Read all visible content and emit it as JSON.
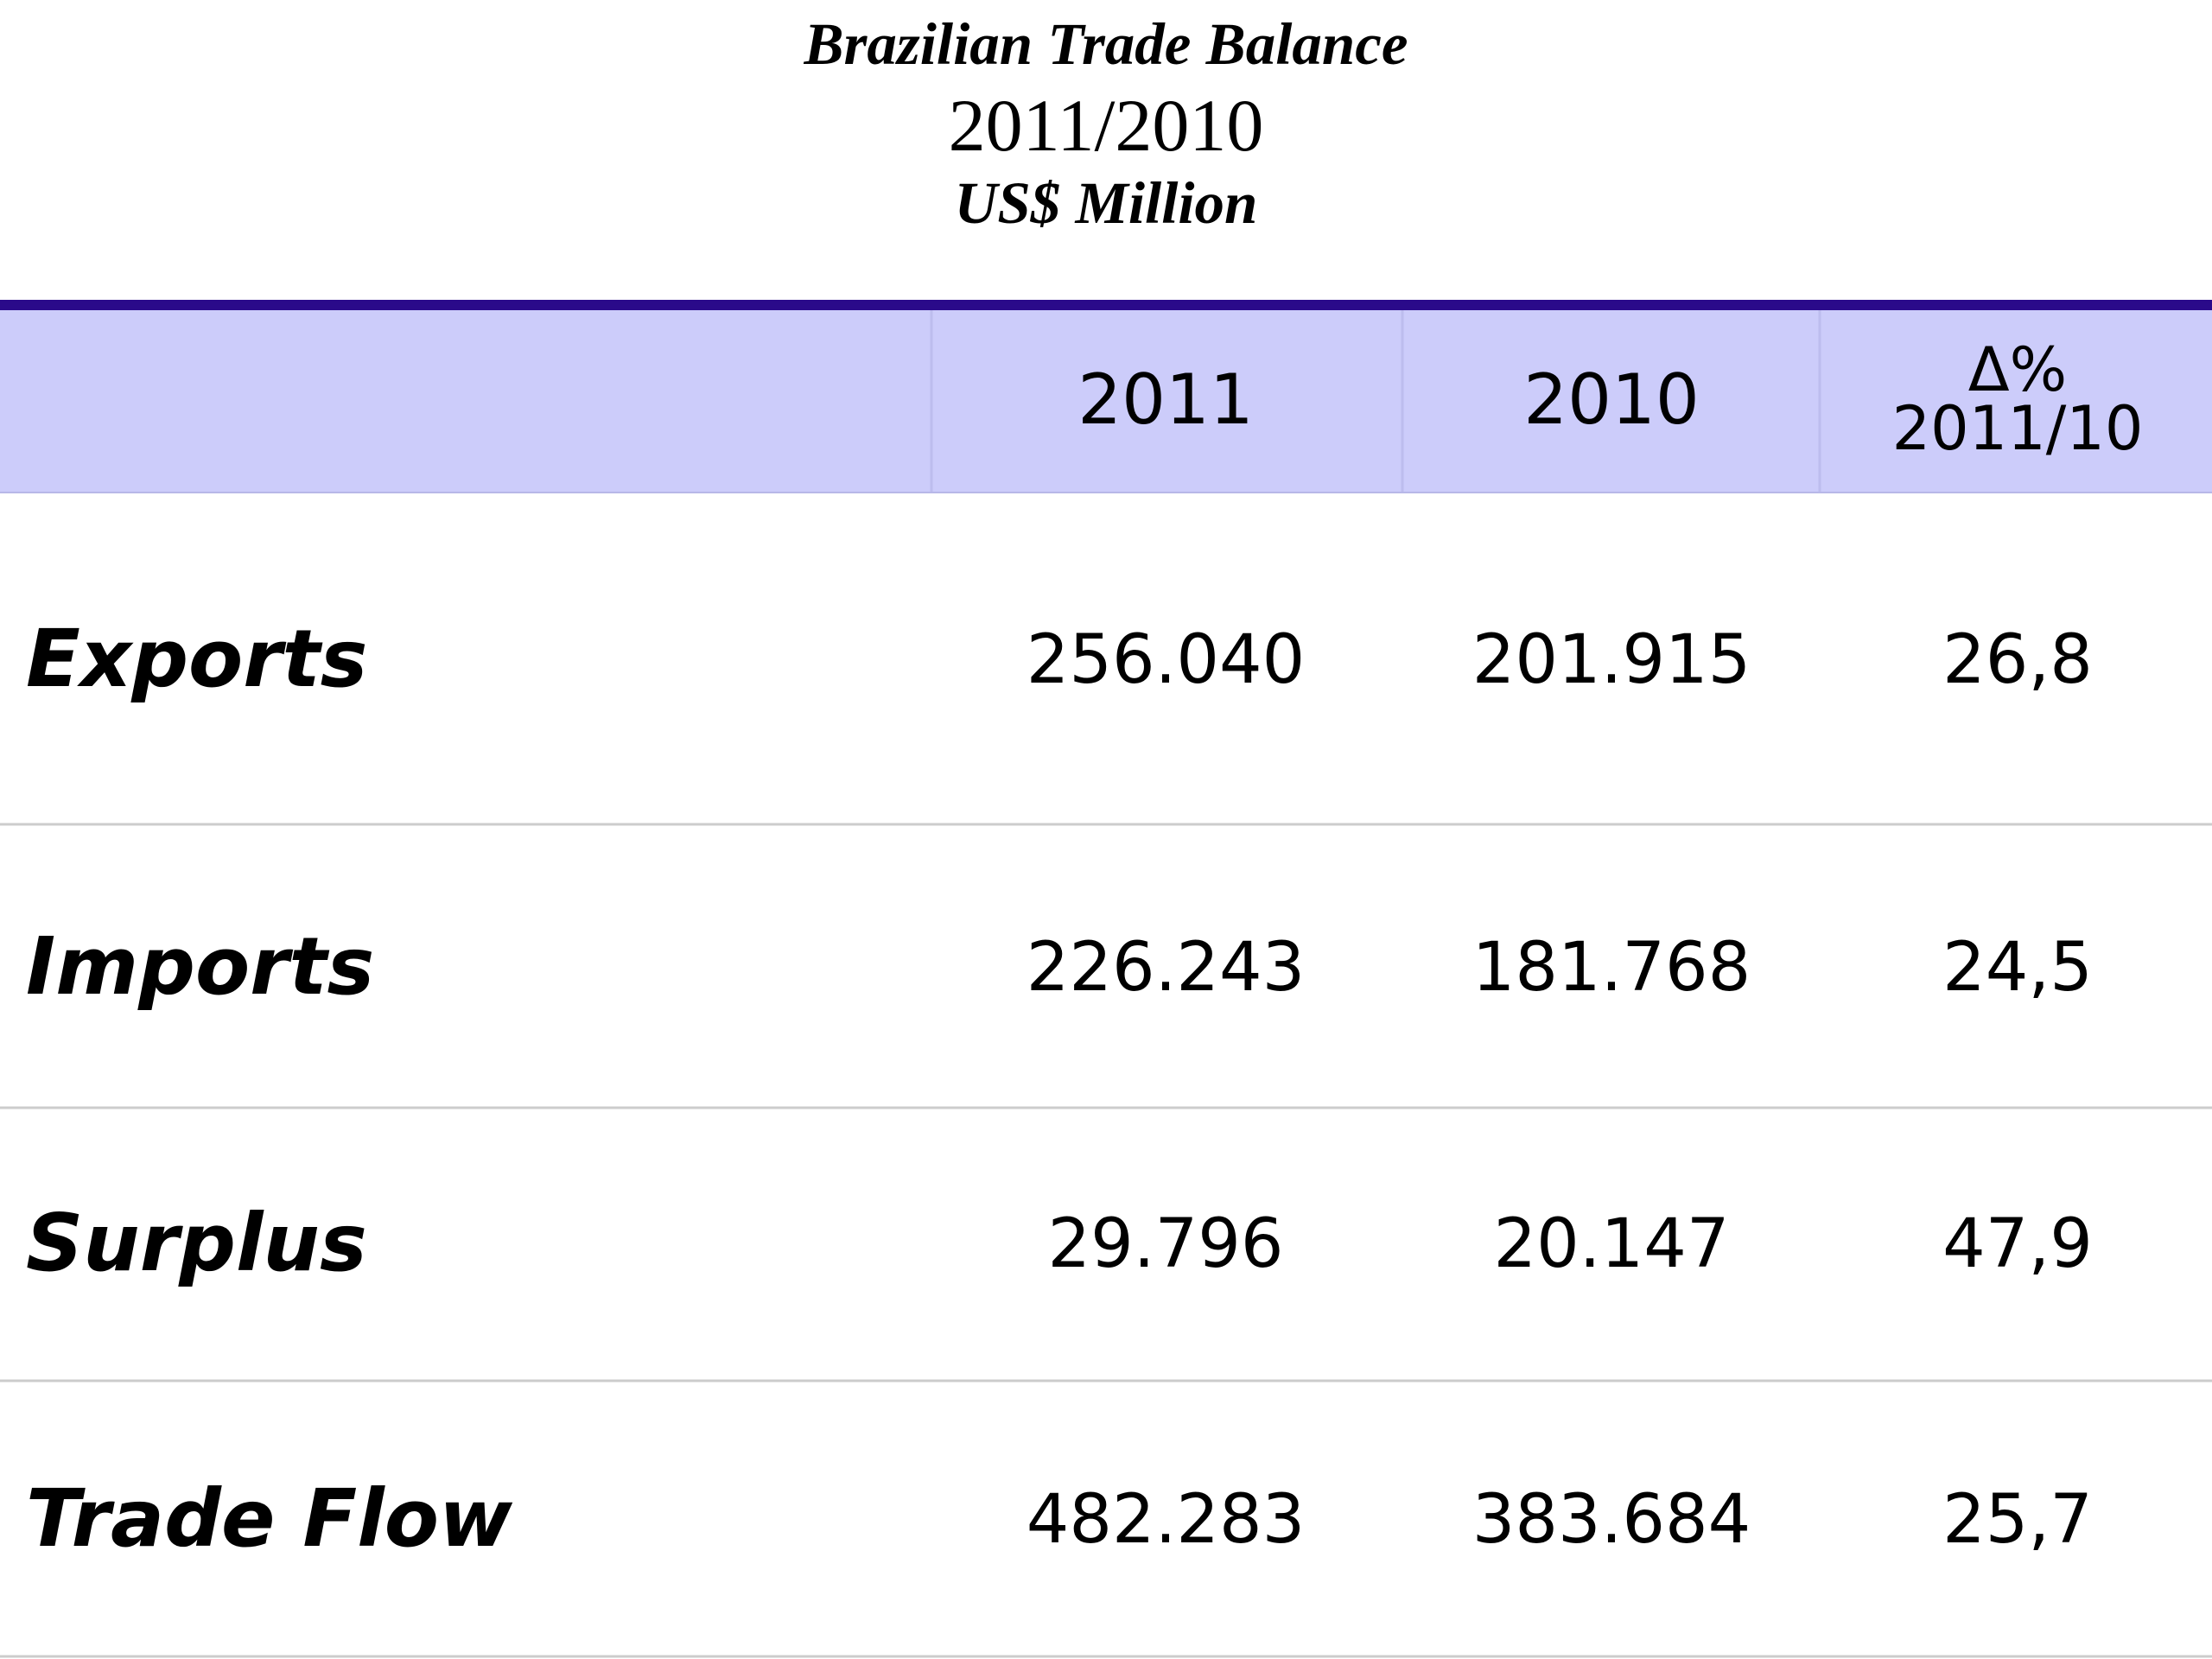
{
  "title": "Brazilian Trade Balance",
  "subtitle": "2011/2010",
  "units": "US$ Million",
  "colors": {
    "header_fill": "#ccccfa",
    "header_rule": "#2a0a8a",
    "row_divider": "#cccccc"
  },
  "chart_data": {
    "type": "table",
    "title": "Brazilian Trade Balance",
    "subtitle": "2011/2010",
    "units": "US$ Million",
    "columns": [
      "",
      "2011",
      "2010",
      "Δ%|2011/10"
    ],
    "column_header_lines": [
      [],
      [
        "2011"
      ],
      [
        "2010"
      ],
      [
        "Δ%",
        "2011/10"
      ]
    ],
    "rows": [
      {
        "label": "Exports",
        "cells": [
          "256.040",
          "201.915",
          "26,8"
        ]
      },
      {
        "label": "Imports",
        "cells": [
          "226.243",
          "181.768",
          "24,5"
        ]
      },
      {
        "label": "Surplus",
        "cells": [
          "29.796",
          "20.147",
          "47,9"
        ]
      },
      {
        "label": "Trade Flow",
        "cells": [
          "482.283",
          "383.684",
          "25,7"
        ]
      }
    ]
  }
}
